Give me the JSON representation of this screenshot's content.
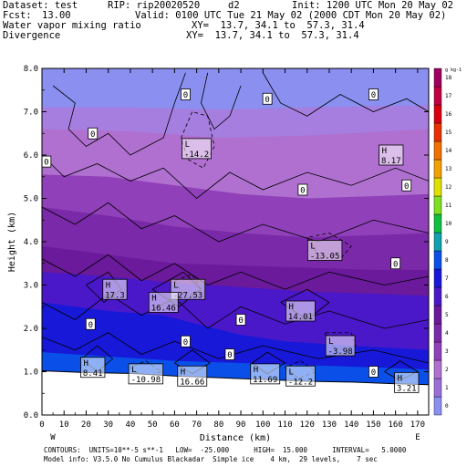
{
  "header": {
    "dataset": "Dataset: test",
    "rip": "RIP: rip20020520",
    "domain": "d2",
    "init": "Init: 1200 UTC Mon 20 May 02",
    "fcst_label": "Fcst:",
    "fcst_value": "13.00",
    "valid": "Valid: 0100 UTC Tue 21 May 02 (2000 CDT Mon 20 May 02)",
    "field1": "Water vapor mixing ratio",
    "field2": "Divergence",
    "xy1": "XY=  13.7, 34.1 to  57.3, 31.4",
    "xy2": "XY=  13.7, 34.1 to  57.3, 31.4"
  },
  "chart_data": {
    "type": "heatmap",
    "xlabel": "Distance (km)",
    "ylabel": "Height (km)",
    "xlim": [
      0,
      175
    ],
    "ylim": [
      0,
      8
    ],
    "x_ticks": [
      "0",
      "10",
      "20",
      "30",
      "40",
      "50",
      "60",
      "70",
      "80",
      "90",
      "100",
      "110",
      "120",
      "130",
      "140",
      "150",
      "160",
      "170"
    ],
    "y_ticks": [
      "0.0",
      "1.0",
      "2.0",
      "3.0",
      "4.0",
      "5.0",
      "6.0",
      "7.0",
      "8.0"
    ],
    "endpoints": {
      "left": "W",
      "right": "E"
    },
    "colorbar": {
      "unit": "g kg-1",
      "levels": [
        "0",
        "1",
        "2",
        "3",
        "4",
        "5",
        "6",
        "7",
        "8",
        "9",
        "10",
        "11",
        "12",
        "13",
        "14",
        "15",
        "16",
        "17",
        "18"
      ],
      "colors": [
        "#8a8ff0",
        "#9a70d8",
        "#b070d0",
        "#9040b8",
        "#7a2aa8",
        "#6a1a9a",
        "#4a18c8",
        "#1818d8",
        "#0a50e8",
        "#10a0b0",
        "#10c040",
        "#80e020",
        "#e0e000",
        "#f0a000",
        "#f07000",
        "#e83000",
        "#d80010",
        "#c00040",
        "#a00060"
      ]
    },
    "bands": [
      {
        "label": "0-1",
        "color": "#8a8ff0"
      },
      {
        "label": "1-2",
        "color": "#a67ee0"
      },
      {
        "label": "2-3",
        "color": "#b070d0"
      },
      {
        "label": "3-4",
        "color": "#9040b8"
      },
      {
        "label": "4-5",
        "color": "#7a2aa8"
      },
      {
        "label": "5-6",
        "color": "#6a1a9a"
      },
      {
        "label": "6-7",
        "color": "#4a18c8"
      },
      {
        "label": "7-8",
        "color": "#1818d8"
      },
      {
        "label": "8-9",
        "color": "#0a50e8"
      }
    ],
    "boxed_labels": [
      {
        "text": "0",
        "x": 65,
        "y": 7.4
      },
      {
        "text": "0",
        "x": 102,
        "y": 7.3
      },
      {
        "text": "0",
        "x": 150,
        "y": 7.4
      },
      {
        "text": "0",
        "x": 23,
        "y": 6.5
      },
      {
        "text": "0",
        "x": 2,
        "y": 5.85
      },
      {
        "text": "0",
        "x": 118,
        "y": 5.2
      },
      {
        "text": "0",
        "x": 165,
        "y": 5.3
      },
      {
        "text": "0",
        "x": 160,
        "y": 3.5
      },
      {
        "text": "0",
        "x": 22,
        "y": 2.1
      },
      {
        "text": "0",
        "x": 90,
        "y": 2.2
      },
      {
        "text": "0",
        "x": 85,
        "y": 1.4
      },
      {
        "text": "0",
        "x": 150,
        "y": 1.0
      },
      {
        "text": "0",
        "x": 65,
        "y": 1.7
      }
    ],
    "extrema": [
      {
        "type": "L",
        "value": "-14.2",
        "x": 70,
        "y": 6.15
      },
      {
        "type": "H",
        "value": "8.17",
        "x": 158,
        "y": 6.0
      },
      {
        "type": "L",
        "value": "-13.05",
        "x": 128,
        "y": 3.8
      },
      {
        "type": "H",
        "value": "17.3",
        "x": 33,
        "y": 2.9
      },
      {
        "type": "L",
        "value": "-27.53",
        "x": 66,
        "y": 2.9
      },
      {
        "type": "H",
        "value": "16.46",
        "x": 55,
        "y": 2.6
      },
      {
        "type": "H",
        "value": "14.01",
        "x": 117,
        "y": 2.4
      },
      {
        "type": "L",
        "value": "-3.98",
        "x": 135,
        "y": 1.6
      },
      {
        "type": "H",
        "value": "8.41",
        "x": 23,
        "y": 1.1
      },
      {
        "type": "L",
        "value": "-10.98",
        "x": 47,
        "y": 0.95
      },
      {
        "type": "H",
        "value": "16.66",
        "x": 68,
        "y": 0.9
      },
      {
        "type": "H",
        "value": "11.69",
        "x": 101,
        "y": 0.95
      },
      {
        "type": "L",
        "value": "-12.2",
        "x": 117,
        "y": 0.9
      },
      {
        "type": "H",
        "value": "3.21",
        "x": 165,
        "y": 0.75
      }
    ],
    "terrain_km": [
      [
        0,
        1.02
      ],
      [
        20,
        0.98
      ],
      [
        40,
        0.96
      ],
      [
        60,
        0.9
      ],
      [
        80,
        0.86
      ],
      [
        100,
        0.82
      ],
      [
        120,
        0.78
      ],
      [
        140,
        0.76
      ],
      [
        160,
        0.72
      ],
      [
        175,
        0.7
      ]
    ]
  },
  "footer": {
    "line1": "CONTOURS:  UNITS=10**-5 s**-1   LOW=  -25.000      HIGH=  15.000      INTERVAL=   5.0000",
    "line2": "Model info: V3.5.0 No Cumulus Blackadar  Simple ice    4 km,  29 levels,    7 sec"
  }
}
